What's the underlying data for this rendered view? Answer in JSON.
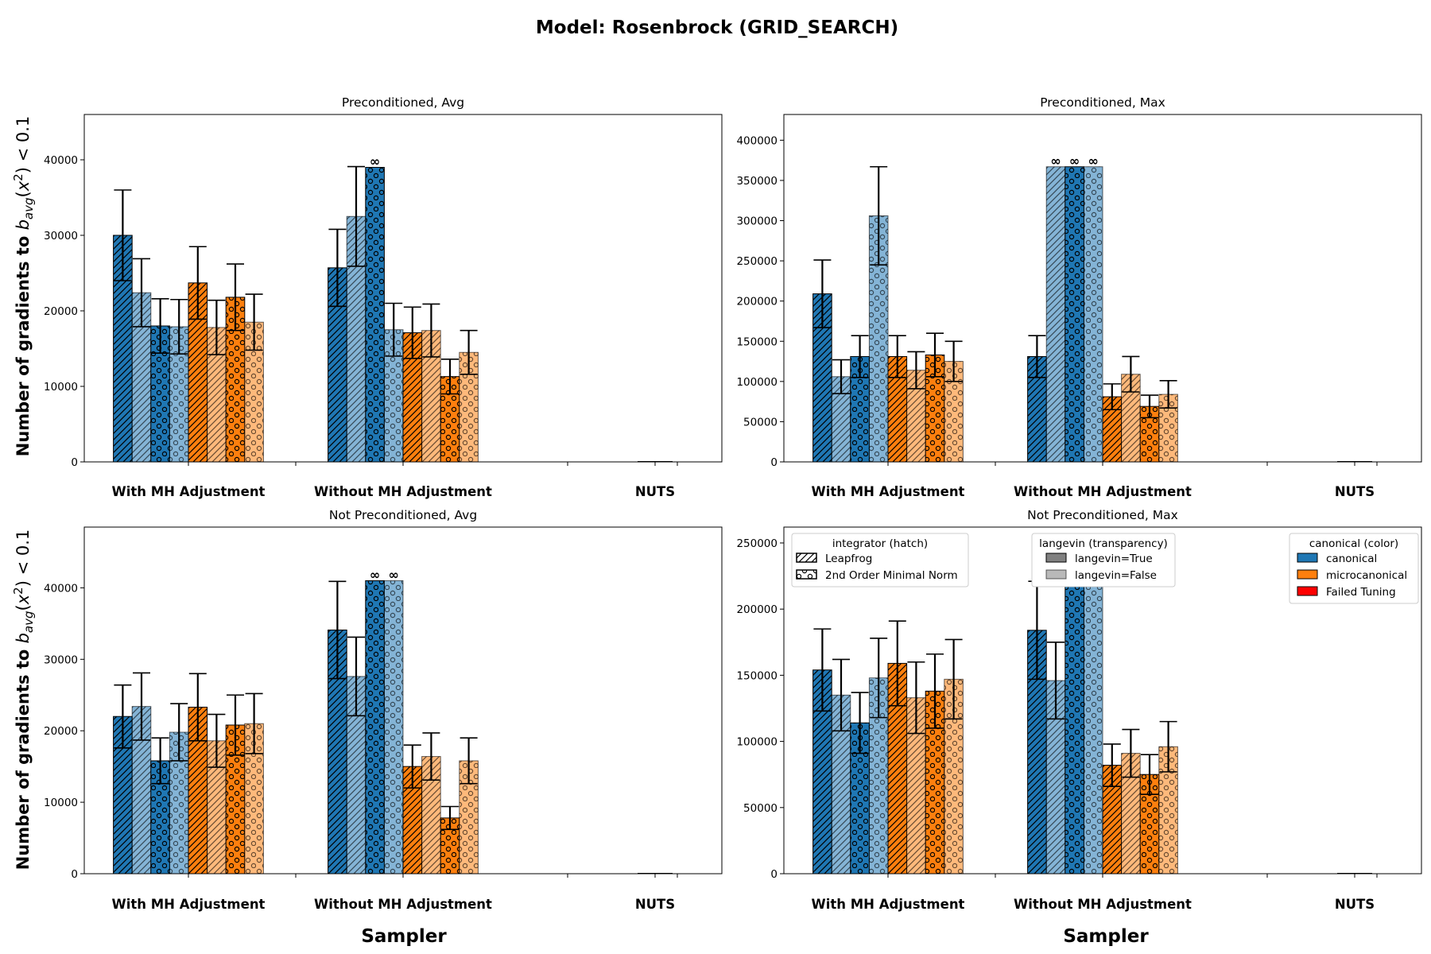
{
  "figure": {
    "title": "Model: Rosenbrock (GRID_SEARCH)",
    "xlabel": "Sampler",
    "ylabel_text": "Number of gradients to ",
    "ylabel_math": "b_avg(x^2) < 0.1"
  },
  "legend": {
    "integrator": {
      "title": "integrator (hatch)",
      "items": [
        "Leapfrog",
        "2nd Order Minimal Norm"
      ]
    },
    "langevin": {
      "title": "langevin (transparency)",
      "items": [
        "langevin=True",
        "langevin=False"
      ]
    },
    "canonical": {
      "title": "canonical (color)",
      "items": [
        {
          "label": "canonical",
          "color": "#1f77b4"
        },
        {
          "label": "microcanonical",
          "color": "#ff7f0e"
        },
        {
          "label": "Failed Tuning",
          "color": "#ff0000"
        }
      ]
    },
    "location": "upper band of the Not Preconditioned, Max panel"
  },
  "chart_data": [
    {
      "type": "bar",
      "title": "Preconditioned, Avg",
      "categories": [
        "With MH Adjustment",
        "Without MH Adjustment",
        "NUTS"
      ],
      "ylim": [
        0,
        46000
      ],
      "yticks": [
        0,
        10000,
        20000,
        30000,
        40000
      ],
      "series": [
        {
          "color": "canonical",
          "langevin": true,
          "integrator": "Leapfrog",
          "values": [
            30000,
            25700,
            null
          ],
          "err": [
            6000,
            5100,
            null
          ],
          "infinite": [
            false,
            false,
            false
          ]
        },
        {
          "color": "canonical",
          "langevin": false,
          "integrator": "Leapfrog",
          "values": [
            22400,
            32500,
            null
          ],
          "err": [
            4500,
            6600,
            null
          ],
          "infinite": [
            false,
            false,
            false
          ]
        },
        {
          "color": "canonical",
          "langevin": true,
          "integrator": "2nd Order Minimal Norm",
          "values": [
            18000,
            39000,
            null
          ],
          "err": [
            3600,
            0,
            null
          ],
          "infinite": [
            false,
            true,
            false
          ]
        },
        {
          "color": "canonical",
          "langevin": false,
          "integrator": "2nd Order Minimal Norm",
          "values": [
            17900,
            17500,
            null
          ],
          "err": [
            3600,
            3500,
            null
          ],
          "infinite": [
            false,
            false,
            false
          ]
        },
        {
          "color": "microcanonical",
          "langevin": true,
          "integrator": "Leapfrog",
          "values": [
            23700,
            17100,
            null
          ],
          "err": [
            4800,
            3400,
            null
          ],
          "infinite": [
            false,
            false,
            false
          ]
        },
        {
          "color": "microcanonical",
          "langevin": false,
          "integrator": "Leapfrog",
          "values": [
            17800,
            17400,
            null
          ],
          "err": [
            3600,
            3500,
            null
          ],
          "infinite": [
            false,
            false,
            false
          ]
        },
        {
          "color": "microcanonical",
          "langevin": true,
          "integrator": "2nd Order Minimal Norm",
          "values": [
            21800,
            11300,
            null
          ],
          "err": [
            4400,
            2300,
            null
          ],
          "infinite": [
            false,
            false,
            false
          ]
        },
        {
          "color": "microcanonical",
          "langevin": false,
          "integrator": "2nd Order Minimal Norm",
          "values": [
            18500,
            14500,
            null
          ],
          "err": [
            3700,
            2900,
            null
          ],
          "infinite": [
            false,
            false,
            false
          ]
        }
      ]
    },
    {
      "type": "bar",
      "title": "Preconditioned, Max",
      "categories": [
        "With MH Adjustment",
        "Without MH Adjustment",
        "NUTS"
      ],
      "ylim": [
        0,
        432000
      ],
      "yticks": [
        0,
        50000,
        100000,
        150000,
        200000,
        250000,
        300000,
        350000,
        400000
      ],
      "series": [
        {
          "color": "canonical",
          "langevin": true,
          "integrator": "Leapfrog",
          "values": [
            209000,
            131000,
            null
          ],
          "err": [
            42000,
            26000,
            null
          ],
          "infinite": [
            false,
            false,
            false
          ]
        },
        {
          "color": "canonical",
          "langevin": false,
          "integrator": "Leapfrog",
          "values": [
            106000,
            367000,
            null
          ],
          "err": [
            21000,
            0,
            null
          ],
          "infinite": [
            false,
            true,
            false
          ]
        },
        {
          "color": "canonical",
          "langevin": true,
          "integrator": "2nd Order Minimal Norm",
          "values": [
            131000,
            367000,
            null
          ],
          "err": [
            26000,
            0,
            null
          ],
          "infinite": [
            false,
            true,
            false
          ]
        },
        {
          "color": "canonical",
          "langevin": false,
          "integrator": "2nd Order Minimal Norm",
          "values": [
            306000,
            367000,
            null
          ],
          "err": [
            61000,
            0,
            null
          ],
          "infinite": [
            false,
            true,
            false
          ]
        },
        {
          "color": "microcanonical",
          "langevin": true,
          "integrator": "Leapfrog",
          "values": [
            131000,
            81000,
            null
          ],
          "err": [
            26000,
            16000,
            null
          ],
          "infinite": [
            false,
            false,
            false
          ]
        },
        {
          "color": "microcanonical",
          "langevin": false,
          "integrator": "Leapfrog",
          "values": [
            114000,
            109000,
            null
          ],
          "err": [
            23000,
            22000,
            null
          ],
          "infinite": [
            false,
            false,
            false
          ]
        },
        {
          "color": "microcanonical",
          "langevin": true,
          "integrator": "2nd Order Minimal Norm",
          "values": [
            133000,
            69000,
            null
          ],
          "err": [
            27000,
            14000,
            null
          ],
          "infinite": [
            false,
            false,
            false
          ]
        },
        {
          "color": "microcanonical",
          "langevin": false,
          "integrator": "2nd Order Minimal Norm",
          "values": [
            125000,
            84000,
            null
          ],
          "err": [
            25000,
            17000,
            null
          ],
          "infinite": [
            false,
            false,
            false
          ]
        }
      ]
    },
    {
      "type": "bar",
      "title": "Not Preconditioned, Avg",
      "categories": [
        "With MH Adjustment",
        "Without MH Adjustment",
        "NUTS"
      ],
      "ylim": [
        0,
        48500
      ],
      "yticks": [
        0,
        10000,
        20000,
        30000,
        40000
      ],
      "series": [
        {
          "color": "canonical",
          "langevin": true,
          "integrator": "Leapfrog",
          "values": [
            22000,
            34100,
            null
          ],
          "err": [
            4400,
            6800,
            null
          ],
          "infinite": [
            false,
            false,
            false
          ]
        },
        {
          "color": "canonical",
          "langevin": false,
          "integrator": "Leapfrog",
          "values": [
            23400,
            27600,
            null
          ],
          "err": [
            4700,
            5500,
            null
          ],
          "infinite": [
            false,
            false,
            false
          ]
        },
        {
          "color": "canonical",
          "langevin": true,
          "integrator": "2nd Order Minimal Norm",
          "values": [
            15800,
            41000,
            null
          ],
          "err": [
            3200,
            0,
            null
          ],
          "infinite": [
            false,
            true,
            false
          ]
        },
        {
          "color": "canonical",
          "langevin": false,
          "integrator": "2nd Order Minimal Norm",
          "values": [
            19800,
            41000,
            null
          ],
          "err": [
            4000,
            0,
            null
          ],
          "infinite": [
            false,
            true,
            false
          ]
        },
        {
          "color": "microcanonical",
          "langevin": true,
          "integrator": "Leapfrog",
          "values": [
            23300,
            15000,
            null
          ],
          "err": [
            4700,
            3000,
            null
          ],
          "infinite": [
            false,
            false,
            false
          ]
        },
        {
          "color": "microcanonical",
          "langevin": false,
          "integrator": "Leapfrog",
          "values": [
            18600,
            16400,
            null
          ],
          "err": [
            3700,
            3300,
            null
          ],
          "infinite": [
            false,
            false,
            false
          ]
        },
        {
          "color": "microcanonical",
          "langevin": true,
          "integrator": "2nd Order Minimal Norm",
          "values": [
            20800,
            7800,
            null
          ],
          "err": [
            4200,
            1600,
            null
          ],
          "infinite": [
            false,
            false,
            false
          ]
        },
        {
          "color": "microcanonical",
          "langevin": false,
          "integrator": "2nd Order Minimal Norm",
          "values": [
            21000,
            15800,
            null
          ],
          "err": [
            4200,
            3200,
            null
          ],
          "infinite": [
            false,
            false,
            false
          ]
        }
      ]
    },
    {
      "type": "bar",
      "title": "Not Preconditioned, Max",
      "categories": [
        "With MH Adjustment",
        "Without MH Adjustment",
        "NUTS"
      ],
      "ylim": [
        0,
        262000
      ],
      "yticks": [
        0,
        50000,
        100000,
        150000,
        200000,
        250000
      ],
      "series": [
        {
          "color": "canonical",
          "langevin": true,
          "integrator": "Leapfrog",
          "values": [
            154000,
            184000,
            null
          ],
          "err": [
            31000,
            37000,
            null
          ],
          "infinite": [
            false,
            false,
            false
          ]
        },
        {
          "color": "canonical",
          "langevin": false,
          "integrator": "Leapfrog",
          "values": [
            135000,
            146000,
            null
          ],
          "err": [
            27000,
            29000,
            null
          ],
          "infinite": [
            false,
            false,
            false
          ]
        },
        {
          "color": "canonical",
          "langevin": true,
          "integrator": "2nd Order Minimal Norm",
          "values": [
            114000,
            222000,
            null
          ],
          "err": [
            23000,
            0,
            null
          ],
          "infinite": [
            false,
            false,
            false
          ]
        },
        {
          "color": "canonical",
          "langevin": false,
          "integrator": "2nd Order Minimal Norm",
          "values": [
            148000,
            222000,
            null
          ],
          "err": [
            30000,
            0,
            null
          ],
          "infinite": [
            false,
            false,
            false
          ]
        },
        {
          "color": "microcanonical",
          "langevin": true,
          "integrator": "Leapfrog",
          "values": [
            159000,
            82000,
            null
          ],
          "err": [
            32000,
            16000,
            null
          ],
          "infinite": [
            false,
            false,
            false
          ]
        },
        {
          "color": "microcanonical",
          "langevin": false,
          "integrator": "Leapfrog",
          "values": [
            133000,
            91000,
            null
          ],
          "err": [
            27000,
            18000,
            null
          ],
          "infinite": [
            false,
            false,
            false
          ]
        },
        {
          "color": "microcanonical",
          "langevin": true,
          "integrator": "2nd Order Minimal Norm",
          "values": [
            138000,
            75000,
            null
          ],
          "err": [
            28000,
            15000,
            null
          ],
          "infinite": [
            false,
            false,
            false
          ]
        },
        {
          "color": "microcanonical",
          "langevin": false,
          "integrator": "2nd Order Minimal Norm",
          "values": [
            147000,
            96000,
            null
          ],
          "err": [
            30000,
            19000,
            null
          ],
          "infinite": [
            false,
            false,
            false
          ]
        }
      ]
    }
  ]
}
